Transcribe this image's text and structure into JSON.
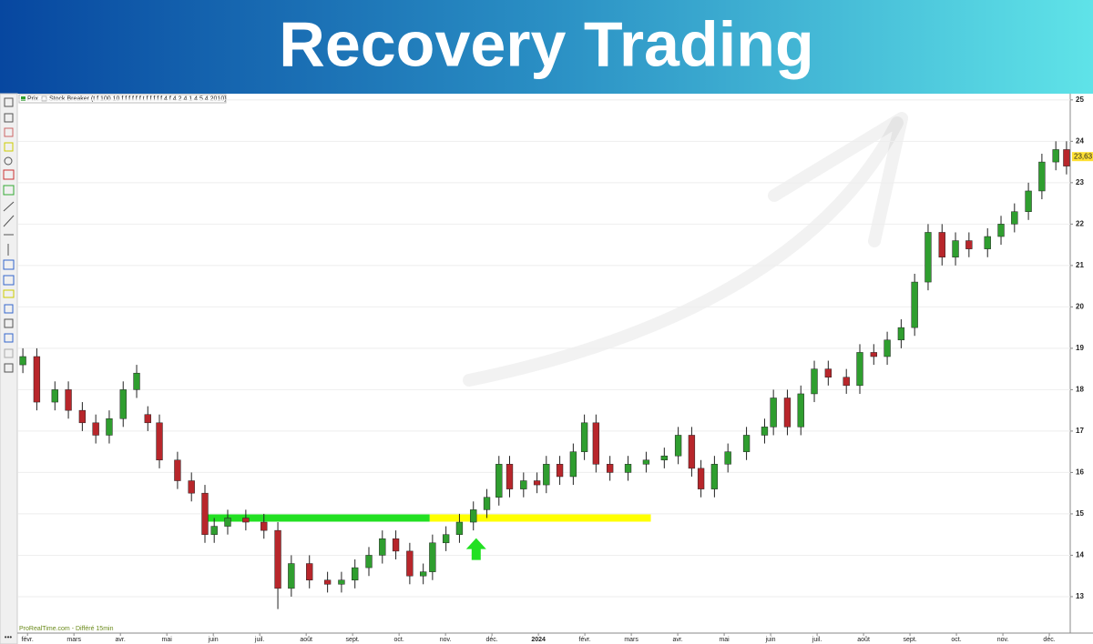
{
  "chart_data": {
    "type": "candlestick",
    "title": "Recovery Trading",
    "legend_items": [
      "Prix",
      "Stock Breaker (t f 100 10 f f f f f f t f f f f f 4 f 4 2 4 1 4 5 4 2010)"
    ],
    "footer": "ProRealTime.com - Différé 15min",
    "x": [
      -0.1,
      0.2,
      0.59,
      0.88,
      1.18,
      1.47,
      1.76,
      2.06,
      2.35,
      2.59,
      2.84,
      3.23,
      3.53,
      3.82,
      4.02,
      4.31,
      4.7,
      5.09,
      5.39,
      5.68,
      6.07,
      6.46,
      6.76,
      7.05,
      7.35,
      7.64,
      7.93,
      8.23,
      8.52,
      8.72,
      9.01,
      9.3,
      9.6,
      9.89,
      10.15,
      10.38,
      10.68,
      10.97,
      11.17,
      11.46,
      11.75,
      11.99,
      12.24,
      12.54,
      12.93,
      13.32,
      13.71,
      14.01,
      14.3,
      14.5,
      14.79,
      15.08,
      15.48,
      15.87,
      16.06,
      16.36,
      16.65,
      16.94,
      17.24,
      17.63,
      17.92,
      18.22,
      18.51,
      18.81,
      19.1,
      19.39,
      19.69,
      19.98,
      20.27,
      20.67,
      20.96,
      21.25,
      21.55,
      21.84,
      22.14,
      22.37
    ],
    "open": [
      18.6,
      18.8,
      17.7,
      18.0,
      17.5,
      17.2,
      16.9,
      17.3,
      18.0,
      17.4,
      17.2,
      16.3,
      15.8,
      15.5,
      14.5,
      14.7,
      14.9,
      14.8,
      14.6,
      13.2,
      13.8,
      13.4,
      13.3,
      13.4,
      13.7,
      14.0,
      14.4,
      14.1,
      13.5,
      13.6,
      14.3,
      14.5,
      14.8,
      15.1,
      15.4,
      16.2,
      15.6,
      15.8,
      15.7,
      16.2,
      15.9,
      16.5,
      17.2,
      16.2,
      16.0,
      16.2,
      16.3,
      16.4,
      16.9,
      16.1,
      15.6,
      16.2,
      16.5,
      16.9,
      17.1,
      17.8,
      17.1,
      17.9,
      18.5,
      18.3,
      18.1,
      18.9,
      18.8,
      19.2,
      19.5,
      20.6,
      21.8,
      21.2,
      21.6,
      21.4,
      21.7,
      22.0,
      22.3,
      22.8,
      23.5,
      23.8
    ],
    "high": [
      19.0,
      19.0,
      18.2,
      18.2,
      17.7,
      17.4,
      17.5,
      18.2,
      18.6,
      17.6,
      17.4,
      16.5,
      16.0,
      15.7,
      14.9,
      15.1,
      15.1,
      15.0,
      14.8,
      14.0,
      14.0,
      13.6,
      13.6,
      13.9,
      14.2,
      14.6,
      14.6,
      14.3,
      13.8,
      14.5,
      14.7,
      15.0,
      15.3,
      15.6,
      16.4,
      16.4,
      16.0,
      16.0,
      16.4,
      16.4,
      16.7,
      17.4,
      17.4,
      16.4,
      16.4,
      16.5,
      16.6,
      17.1,
      17.1,
      16.3,
      16.4,
      16.7,
      17.1,
      17.3,
      18.0,
      18.0,
      18.1,
      18.7,
      18.7,
      18.5,
      19.1,
      19.1,
      19.4,
      19.7,
      20.8,
      22.0,
      22.0,
      21.8,
      21.8,
      21.9,
      22.2,
      22.5,
      23.0,
      23.7,
      24.0,
      24.0
    ],
    "low": [
      18.4,
      17.5,
      17.5,
      17.3,
      17.0,
      16.7,
      16.7,
      17.1,
      17.8,
      17.0,
      16.1,
      15.6,
      15.3,
      14.3,
      14.3,
      14.5,
      14.6,
      14.4,
      12.7,
      13.0,
      13.2,
      13.1,
      13.1,
      13.2,
      13.5,
      13.8,
      13.9,
      13.3,
      13.3,
      13.4,
      14.1,
      14.3,
      14.6,
      14.9,
      15.2,
      15.4,
      15.4,
      15.5,
      15.5,
      15.7,
      15.7,
      16.3,
      16.0,
      15.8,
      15.8,
      16.0,
      16.1,
      16.2,
      15.9,
      15.4,
      15.4,
      16.0,
      16.3,
      16.7,
      16.9,
      16.9,
      16.9,
      17.7,
      18.1,
      17.9,
      17.9,
      18.6,
      18.6,
      19.0,
      19.3,
      20.4,
      21.0,
      21.0,
      21.2,
      21.2,
      21.5,
      21.8,
      22.1,
      22.6,
      23.3,
      23.2
    ],
    "close": [
      18.8,
      17.7,
      18.0,
      17.5,
      17.2,
      16.9,
      17.3,
      18.0,
      18.4,
      17.2,
      16.3,
      15.8,
      15.5,
      14.5,
      14.7,
      14.9,
      14.8,
      14.6,
      13.2,
      13.8,
      13.4,
      13.3,
      13.4,
      13.7,
      14.0,
      14.4,
      14.1,
      13.5,
      13.6,
      14.3,
      14.5,
      14.8,
      15.1,
      15.4,
      16.2,
      15.6,
      15.8,
      15.7,
      16.2,
      15.9,
      16.5,
      17.2,
      16.2,
      16.0,
      16.2,
      16.3,
      16.4,
      16.9,
      16.1,
      15.6,
      16.2,
      16.5,
      16.9,
      17.1,
      17.8,
      17.1,
      17.9,
      18.5,
      18.3,
      18.1,
      18.9,
      18.8,
      19.2,
      19.5,
      20.6,
      21.8,
      21.2,
      21.6,
      21.4,
      21.7,
      22.0,
      22.3,
      22.8,
      23.5,
      23.8,
      23.4
    ],
    "up_color": "#2f9e2f",
    "down_color": "#b8262b",
    "levels": [
      {
        "value": 14.9,
        "x_start": 3.82,
        "x_end": 8.66,
        "color": "#22e022"
      },
      {
        "value": 14.9,
        "x_start": 8.66,
        "x_end": 13.42,
        "color": "#ffff00"
      }
    ],
    "signal": {
      "x": 9.66,
      "y": 14.15,
      "color": "#22e022"
    },
    "last_price": {
      "value": 23.63,
      "label": "23,63"
    },
    "xlim": [
      -0.2,
      22.45
    ],
    "ylim": [
      12.12,
      25.15
    ],
    "yticks": [
      13,
      14,
      15,
      16,
      17,
      18,
      19,
      20,
      21,
      22,
      23,
      24,
      25
    ],
    "xticks": [
      {
        "value": 0,
        "label": "févr."
      },
      {
        "value": 1,
        "label": "mars"
      },
      {
        "value": 2,
        "label": "avr."
      },
      {
        "value": 3,
        "label": "mai"
      },
      {
        "value": 4,
        "label": "juin"
      },
      {
        "value": 5,
        "label": "juil."
      },
      {
        "value": 6,
        "label": "août"
      },
      {
        "value": 7,
        "label": "sept."
      },
      {
        "value": 8,
        "label": "oct."
      },
      {
        "value": 9,
        "label": "nov."
      },
      {
        "value": 10,
        "label": "déc."
      },
      {
        "value": 11,
        "label": "2024"
      },
      {
        "value": 12,
        "label": "févr."
      },
      {
        "value": 13,
        "label": "mars"
      },
      {
        "value": 14,
        "label": "avr."
      },
      {
        "value": 15,
        "label": "mai"
      },
      {
        "value": 16,
        "label": "juin"
      },
      {
        "value": 17,
        "label": "juil."
      },
      {
        "value": 18,
        "label": "août"
      },
      {
        "value": 19,
        "label": "sept."
      },
      {
        "value": 20,
        "label": "oct."
      },
      {
        "value": 21,
        "label": "nov."
      },
      {
        "value": 22,
        "label": "déc."
      }
    ],
    "grid": true
  }
}
